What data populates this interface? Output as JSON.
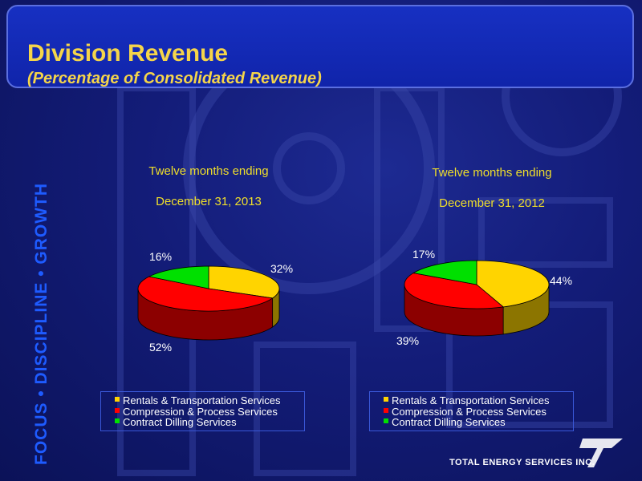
{
  "slide": {
    "title": "Division Revenue",
    "subtitle": "(Percentage of Consolidated Revenue)",
    "tagline": "FOCUS • DISCIPLINE • GROWTH",
    "company": "TOTAL ENERGY SERVICES INC."
  },
  "colors": {
    "rentals": "#ffd400",
    "compression": "#ff0000",
    "drilling": "#00e000",
    "title": "#f5d54a",
    "period": "#f0df2a"
  },
  "chart_data": [
    {
      "type": "pie",
      "title_line1": "Twelve months ending",
      "title_line2": "December 31, 2013",
      "categories": [
        "Rentals & Transportation Services",
        "Compression & Process Services",
        "Contract Dilling Services"
      ],
      "values": [
        32,
        52,
        16
      ],
      "labels": [
        "32%",
        "52%",
        "16%"
      ],
      "legend": "bottom"
    },
    {
      "type": "pie",
      "title_line1": "Twelve months ending",
      "title_line2": "December 31, 2012",
      "categories": [
        "Rentals & Transportation Services",
        "Compression & Process Services",
        "Contract Dilling Services"
      ],
      "values": [
        44,
        39,
        17
      ],
      "labels": [
        "44%",
        "39%",
        "17%"
      ],
      "legend": "bottom"
    }
  ]
}
